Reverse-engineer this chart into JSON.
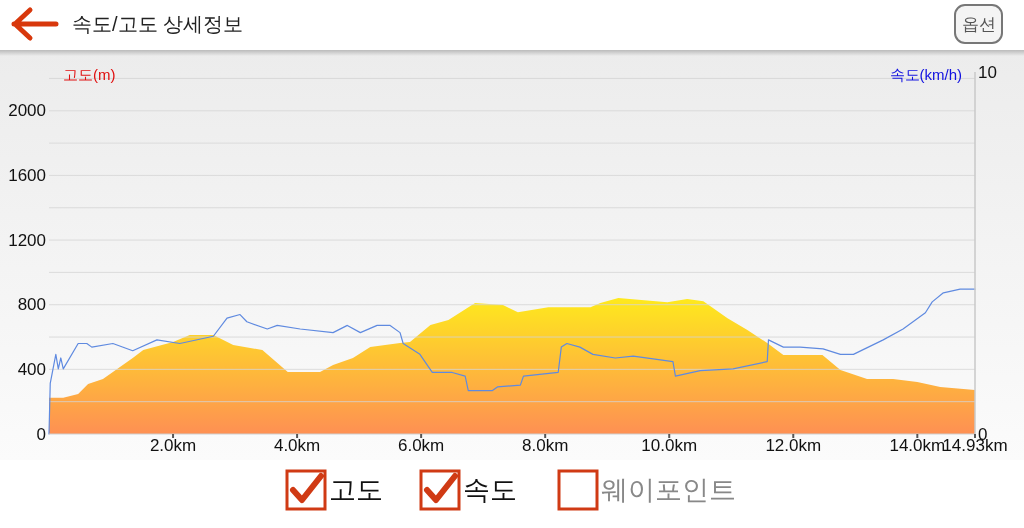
{
  "chart_data": {
    "type": "area",
    "title": "속도/고도 상세정보",
    "ylabel": "고도(m)",
    "y2label": "속도(km/h)",
    "annotations": [
      "옵션",
      "고도",
      "속도",
      "웨이포인트"
    ],
    "xlim": [
      0,
      14.93
    ],
    "xticks": [
      {
        "value": 2,
        "label": "2.0km"
      },
      {
        "value": 4,
        "label": "4.0km"
      },
      {
        "value": 6,
        "label": "6.0km"
      },
      {
        "value": 8,
        "label": "8.0km"
      },
      {
        "value": 10,
        "label": "10.0km"
      },
      {
        "value": 12,
        "label": "12.0km"
      },
      {
        "value": 14,
        "label": "14.0km"
      },
      {
        "value": 14.93,
        "label": "14.93km"
      }
    ],
    "ylim": [
      0,
      2240
    ],
    "yticks": [
      0,
      {
        "value": 200,
        "label": null
      },
      400,
      {
        "value": 600,
        "label": null
      },
      800,
      {
        "value": 1000,
        "label": null
      },
      1200,
      {
        "value": 1400,
        "label": null
      },
      1600,
      {
        "value": 1800,
        "label": null
      },
      2000,
      {
        "value": 2200,
        "label": null
      }
    ],
    "y2lim": [
      0,
      10
    ],
    "y2ticks": [
      0,
      10
    ],
    "grid": "y",
    "series": [
      {
        "color": "#fdb53c",
        "x": [
          0,
          0.23,
          0.47,
          0.63,
          0.87,
          1.35,
          1.52,
          2.0,
          2.27,
          2.65,
          2.97,
          3.44,
          3.85,
          4.37,
          4.58,
          4.9,
          5.18,
          5.66,
          5.82,
          6.15,
          6.44,
          6.87,
          7.32,
          7.56,
          8.05,
          8.73,
          8.89,
          9.18,
          9.97,
          10.29,
          10.55,
          10.94,
          11.26,
          11.58,
          11.84,
          12.47,
          12.76,
          13.19,
          13.61,
          14.0,
          14.37,
          14.93
        ],
        "values": [
          225,
          225,
          247,
          309,
          340,
          470,
          520,
          569,
          612,
          612,
          550,
          520,
          383,
          383,
          427,
          470,
          538,
          563,
          569,
          674,
          705,
          810,
          798,
          754,
          785,
          785,
          810,
          841,
          816,
          835,
          822,
          717,
          643,
          563,
          489,
          489,
          396,
          340,
          340,
          322,
          291,
          272
        ]
      },
      {
        "type": "line",
        "axis": "y2",
        "color": "#5f8ae0",
        "x": [
          0,
          0.02,
          0.11,
          0.15,
          0.19,
          0.23,
          0.47,
          0.61,
          0.69,
          1.03,
          1.35,
          1.74,
          2.11,
          2.65,
          2.87,
          3.08,
          3.19,
          3.52,
          3.68,
          4.05,
          4.58,
          4.81,
          5.02,
          5.29,
          5.5,
          5.66,
          5.71,
          5.98,
          6.18,
          6.5,
          6.71,
          6.76,
          7.15,
          7.23,
          7.6,
          7.65,
          8.21,
          8.26,
          8.35,
          8.56,
          8.77,
          9.13,
          9.42,
          10.06,
          10.1,
          10.5,
          11.03,
          11.58,
          11.6,
          11.84,
          12.11,
          12.48,
          12.76,
          12.97,
          13.45,
          13.77,
          14.13,
          14.24,
          14.42,
          14.69,
          14.93
        ],
        "values": [
          0,
          1.4,
          2.2,
          1.8,
          2.1,
          1.8,
          2.5,
          2.5,
          2.4,
          2.5,
          2.3,
          2.6,
          2.5,
          2.7,
          3.2,
          3.3,
          3.1,
          2.9,
          3.0,
          2.9,
          2.8,
          3.0,
          2.8,
          3.0,
          3.0,
          2.8,
          2.5,
          2.2,
          1.7,
          1.7,
          1.6,
          1.2,
          1.2,
          1.3,
          1.35,
          1.6,
          1.7,
          2.4,
          2.5,
          2.4,
          2.2,
          2.1,
          2.15,
          2.0,
          1.6,
          1.75,
          1.8,
          2.0,
          2.6,
          2.4,
          2.4,
          2.35,
          2.2,
          2.2,
          2.6,
          2.9,
          3.35,
          3.65,
          3.9,
          4.0,
          4.0
        ]
      }
    ]
  }
}
